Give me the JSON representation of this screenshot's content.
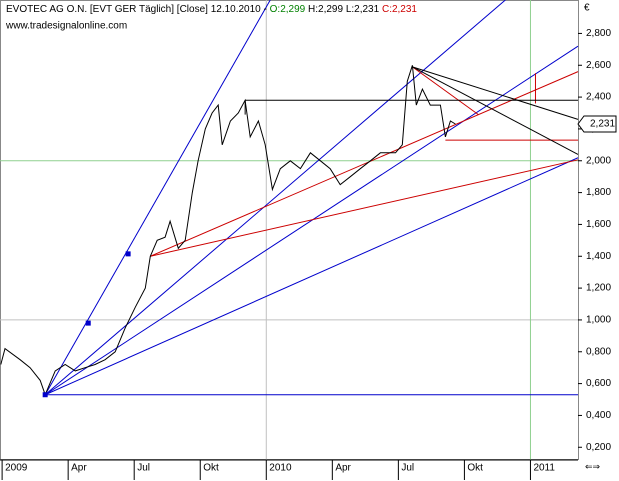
{
  "chart_data": {
    "type": "line",
    "title": "EVOTEC AG O.N. [EVT GER  Täglich] [Close] 12.10.2010 -",
    "ohlc_open": "O:2,299",
    "ohlc_high_low": "H:2,299 L:2,231",
    "ohlc_close": "C:2,231",
    "subtitle": "www.tradesignalonline.com",
    "currency": "€",
    "last_value": 2.231,
    "last_value_label": "2,231",
    "x": [
      2008.995,
      2009.011,
      2009.068,
      2009.106,
      2009.144,
      2009.163,
      2009.201,
      2009.239,
      2009.277,
      2009.314,
      2009.352,
      2009.39,
      2009.428,
      2009.466,
      2009.504,
      2009.542,
      2009.561,
      2009.587,
      2009.617,
      2009.636,
      2009.667,
      2009.693,
      2009.72,
      2009.742,
      2009.769,
      2009.795,
      2009.818,
      2009.833,
      2009.864,
      2009.894,
      2009.92,
      2009.939,
      2009.97,
      2009.996,
      2010.023,
      2010.053,
      2010.091,
      2010.129,
      2010.167,
      2010.205,
      2010.242,
      2010.28,
      2010.318,
      2010.356,
      2010.394,
      2010.432,
      2010.489,
      2010.515,
      2010.534,
      2010.553,
      2010.568,
      2010.591,
      2010.621,
      2010.659,
      2010.678,
      2010.697,
      2010.716
    ],
    "series": [
      {
        "name": "Close",
        "color": "#000000",
        "values": [
          0.72,
          0.82,
          0.75,
          0.7,
          0.62,
          0.53,
          0.68,
          0.72,
          0.68,
          0.7,
          0.72,
          0.75,
          0.8,
          0.95,
          1.08,
          1.2,
          1.4,
          1.5,
          1.52,
          1.62,
          1.45,
          1.5,
          1.8,
          2.0,
          2.2,
          2.3,
          2.35,
          2.1,
          2.25,
          2.3,
          2.38,
          2.15,
          2.25,
          2.1,
          1.82,
          1.95,
          2.0,
          1.95,
          2.05,
          2.0,
          1.95,
          1.85,
          1.9,
          1.95,
          2.0,
          2.05,
          2.05,
          2.1,
          2.5,
          2.6,
          2.35,
          2.45,
          2.35,
          2.35,
          2.15,
          2.25,
          2.231
        ]
      }
    ],
    "lines": [
      {
        "color": "#0000cc",
        "x": [
          2009.163,
          2010.015
        ],
        "y": [
          0.53,
          3.01
        ]
      },
      {
        "color": "#0000cc",
        "x": [
          2009.163,
          2010.905
        ],
        "y": [
          0.53,
          3.01
        ]
      },
      {
        "color": "#0000cc",
        "x": [
          2009.163,
          2011.18
        ],
        "y": [
          0.53,
          2.72
        ]
      },
      {
        "color": "#0000cc",
        "x": [
          2009.163,
          2011.18
        ],
        "y": [
          0.53,
          2.019
        ]
      },
      {
        "color": "#0000cc",
        "x": [
          2009.163,
          2011.18
        ],
        "y": [
          0.53,
          0.53
        ]
      },
      {
        "color": "#cc0000",
        "x": [
          2009.561,
          2011.18
        ],
        "y": [
          1.4,
          2.006
        ]
      },
      {
        "color": "#cc0000",
        "x": [
          2009.561,
          2011.18
        ],
        "y": [
          1.4,
          2.56
        ]
      },
      {
        "color": "#cc0000",
        "x": [
          2010.553,
          2010.803
        ],
        "y": [
          2.59,
          2.29
        ]
      },
      {
        "color": "#cc0000",
        "x": [
          2010.678,
          2011.18
        ],
        "y": [
          2.13,
          2.13
        ]
      },
      {
        "color": "#cc0000",
        "x": [
          2011.019,
          2011.019
        ],
        "y": [
          2.55,
          2.36
        ]
      },
      {
        "color": "#000000",
        "x": [
          2010.553,
          2011.18
        ],
        "y": [
          2.59,
          2.26
        ]
      },
      {
        "color": "#000000",
        "x": [
          2010.553,
          2011.18
        ],
        "y": [
          2.59,
          2.04
        ]
      },
      {
        "color": "#000000",
        "x": [
          2009.92,
          2011.18
        ],
        "y": [
          2.38,
          2.38
        ]
      },
      {
        "color": "#000000",
        "x": [
          2009.92,
          2009.92
        ],
        "y": [
          2.38,
          2.29
        ]
      }
    ],
    "points": {
      "color": "#0000cc",
      "x": [
        2009.163,
        2009.326,
        2009.477
      ],
      "y": [
        0.53,
        0.98,
        1.415
      ]
    },
    "hlines": [
      {
        "value": 1.0,
        "color": "#c0c0c0"
      },
      {
        "value": 2.0,
        "color": "#8fd08f"
      }
    ],
    "vlines": [
      {
        "value": 2010,
        "color": "#c0c0c0"
      },
      {
        "value": 2011,
        "color": "#8fd08f"
      }
    ],
    "xlim": [
      2008.992,
      2011.18
    ],
    "ylim": [
      0.12,
      3.01
    ],
    "xticks": [
      2009,
      {
        "value": 2009.25,
        "label": "Apr"
      },
      {
        "value": 2009.5,
        "label": "Jul"
      },
      {
        "value": 2009.75,
        "label": "Okt"
      },
      2010,
      {
        "value": 2010.25,
        "label": "Apr"
      },
      {
        "value": 2010.5,
        "label": "Jul"
      },
      {
        "value": 2010.75,
        "label": "Okt"
      },
      2011
    ],
    "yticks": [
      {
        "value": 0.2,
        "label": "0,200"
      },
      {
        "value": 0.4,
        "label": "0,400"
      },
      {
        "value": 0.6,
        "label": "0,600"
      },
      {
        "value": 0.8,
        "label": "0,800"
      },
      {
        "value": 1.0,
        "label": "1,000"
      },
      {
        "value": 1.2,
        "label": "1,200"
      },
      {
        "value": 1.4,
        "label": "1,400"
      },
      {
        "value": 1.6,
        "label": "1,600"
      },
      {
        "value": 1.8,
        "label": "1,800"
      },
      {
        "value": 2.0,
        "label": "2,000"
      },
      {
        "value": 2.2,
        "label": "2,200"
      },
      {
        "value": 2.4,
        "label": "2,400"
      },
      {
        "value": 2.6,
        "label": "2,600"
      },
      {
        "value": 2.8,
        "label": "2,800"
      }
    ]
  }
}
